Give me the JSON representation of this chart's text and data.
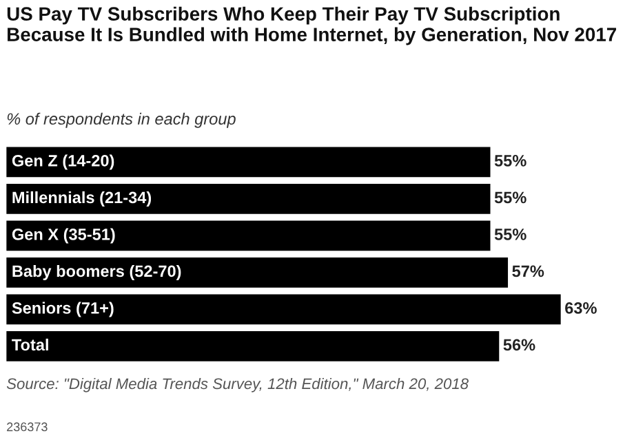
{
  "chart_data": {
    "type": "bar",
    "orientation": "horizontal",
    "title": "US Pay TV Subscribers Who Keep Their Pay TV Subscription Because It Is Bundled with Home Internet, by Generation, Nov 2017",
    "subtitle": "% of respondents in each group",
    "categories": [
      "Gen Z (14-20)",
      "Millennials (21-34)",
      "Gen X (35-51)",
      "Baby boomers (52-70)",
      "Seniors (71+)",
      "Total"
    ],
    "values": [
      55,
      55,
      55,
      57,
      63,
      56
    ],
    "value_labels": [
      "55%",
      "55%",
      "55%",
      "57%",
      "63%",
      "56%"
    ],
    "color": "#000000",
    "annotations": [
      "Source: \"Digital Media Trends Survey, 12th Edition,\" March 20, 2018",
      "236373"
    ]
  }
}
